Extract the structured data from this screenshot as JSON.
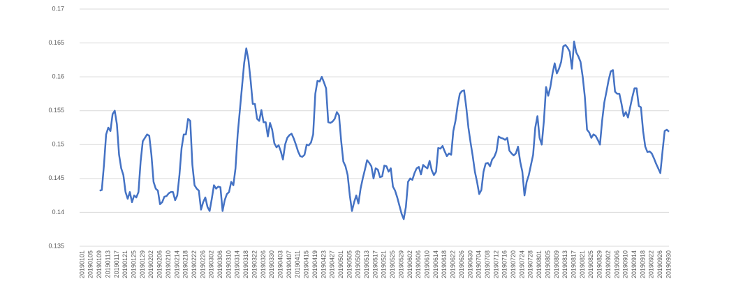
{
  "chart_data": {
    "type": "line",
    "ylim": [
      0.135,
      0.17
    ],
    "yticks": [
      0.135,
      0.14,
      0.145,
      0.15,
      0.155,
      0.16,
      0.165,
      0.17
    ],
    "grid": true,
    "categories": [
      "20190101",
      null,
      null,
      null,
      "20190105",
      null,
      null,
      null,
      "20190109",
      null,
      null,
      null,
      "20190113",
      null,
      null,
      null,
      "20190117",
      null,
      null,
      null,
      "20190121",
      null,
      null,
      null,
      "20190125",
      null,
      null,
      null,
      "20190129",
      null,
      null,
      null,
      "20190202",
      null,
      null,
      null,
      "20190206",
      null,
      null,
      null,
      "20190210",
      null,
      null,
      null,
      "20190214",
      null,
      null,
      null,
      "20190218",
      null,
      null,
      null,
      "20190222",
      null,
      null,
      null,
      "20190226",
      null,
      null,
      null,
      "20190302",
      null,
      null,
      null,
      "20190306",
      null,
      null,
      null,
      "20190310",
      null,
      null,
      null,
      "20190314",
      null,
      null,
      null,
      "20190318",
      null,
      null,
      null,
      "20190322",
      null,
      null,
      null,
      "20190326",
      null,
      null,
      null,
      "20190330",
      null,
      null,
      null,
      "20190403",
      null,
      null,
      null,
      "20190407",
      null,
      null,
      null,
      "20190411",
      null,
      null,
      null,
      "20190415",
      null,
      null,
      null,
      "20190419",
      null,
      null,
      null,
      "20190423",
      null,
      null,
      null,
      "20190427",
      null,
      null,
      null,
      "20190501",
      null,
      null,
      null,
      "20190505",
      null,
      null,
      null,
      "20190509",
      null,
      null,
      null,
      "20190513",
      null,
      null,
      null,
      "20190517",
      null,
      null,
      null,
      "20190521",
      null,
      null,
      null,
      "20190525",
      null,
      null,
      null,
      "20190529",
      null,
      null,
      null,
      "20190602",
      null,
      null,
      null,
      "20190606",
      null,
      null,
      null,
      "20190610",
      null,
      null,
      null,
      "20190614",
      null,
      null,
      null,
      "20190618",
      null,
      null,
      null,
      "20190622",
      null,
      null,
      null,
      "20190626",
      null,
      null,
      null,
      "20190630",
      null,
      null,
      null,
      "20190704",
      null,
      null,
      null,
      "20190708",
      null,
      null,
      null,
      "20190712",
      null,
      null,
      null,
      "20190716",
      null,
      null,
      null,
      "20190720",
      null,
      null,
      null,
      "20190724",
      null,
      null,
      null,
      "20190728",
      null,
      null,
      null,
      "20190801",
      null,
      null,
      null,
      "20190805",
      null,
      null,
      null,
      "20190809",
      null,
      null,
      null,
      "20190813",
      null,
      null,
      null,
      "20190817",
      null,
      null,
      null,
      "20190821",
      null,
      null,
      null,
      "20190825",
      null,
      null,
      null,
      "20190829",
      null,
      null,
      null,
      "20190902",
      null,
      null,
      null,
      "20190906",
      null,
      null,
      null,
      "20190910",
      null,
      null,
      null,
      "20190914",
      null,
      null,
      null,
      "20190918",
      null,
      null,
      null,
      "20190922",
      null,
      null,
      null,
      "20190926",
      null,
      null,
      null,
      "20190930"
    ],
    "series": [
      {
        "color": "#4472c4",
        "values": [
          null,
          null,
          null,
          null,
          null,
          null,
          null,
          null,
          0.1432,
          0.1433,
          0.147,
          0.1515,
          0.1525,
          0.152,
          0.1545,
          0.155,
          0.153,
          0.1485,
          0.1465,
          0.1455,
          0.143,
          0.142,
          0.143,
          0.1415,
          0.1425,
          0.1422,
          0.143,
          0.1475,
          0.1505,
          0.151,
          0.1515,
          0.1513,
          0.1485,
          0.1445,
          0.1435,
          0.1432,
          0.1412,
          0.1415,
          0.1423,
          0.1424,
          0.1428,
          0.143,
          0.143,
          0.1418,
          0.1425,
          0.1455,
          0.1495,
          0.1515,
          0.1515,
          0.1538,
          0.1535,
          0.147,
          0.144,
          0.1435,
          0.1432,
          0.1404,
          0.1415,
          0.1422,
          0.1408,
          0.1402,
          0.142,
          0.144,
          0.1435,
          0.1438,
          0.1437,
          0.1402,
          0.1418,
          0.1427,
          0.143,
          0.1445,
          0.144,
          0.1465,
          0.1515,
          0.155,
          0.1585,
          0.162,
          0.1642,
          0.1625,
          0.1595,
          0.156,
          0.156,
          0.1538,
          0.1535,
          0.1551,
          0.1533,
          0.1533,
          0.1512,
          0.1532,
          0.1522,
          0.1502,
          0.1496,
          0.1499,
          0.149,
          0.1478,
          0.15,
          0.151,
          0.1514,
          0.1516,
          0.1509,
          0.15,
          0.149,
          0.1483,
          0.1482,
          0.1485,
          0.15,
          0.1499,
          0.1503,
          0.1515,
          0.1575,
          0.1594,
          0.1593,
          0.16,
          0.1592,
          0.1583,
          0.1533,
          0.1532,
          0.1534,
          0.1538,
          0.1548,
          0.1543,
          0.1505,
          0.1475,
          0.1468,
          0.1455,
          0.1425,
          0.1402,
          0.1415,
          0.1425,
          0.1413,
          0.1435,
          0.145,
          0.1463,
          0.1477,
          0.1473,
          0.1468,
          0.145,
          0.1465,
          0.1463,
          0.1452,
          0.1453,
          0.1469,
          0.1468,
          0.146,
          0.1465,
          0.1438,
          0.1432,
          0.1422,
          0.141,
          0.1398,
          0.139,
          0.1408,
          0.1445,
          0.145,
          0.1448,
          0.1458,
          0.1465,
          0.1467,
          0.1456,
          0.147,
          0.1467,
          0.1465,
          0.1476,
          0.1462,
          0.1455,
          0.146,
          0.1495,
          0.1494,
          0.1498,
          0.149,
          0.1483,
          0.1487,
          0.1485,
          0.152,
          0.1535,
          0.1558,
          0.1575,
          0.1579,
          0.158,
          0.1555,
          0.1525,
          0.1503,
          0.1483,
          0.146,
          0.1445,
          0.1427,
          0.1433,
          0.146,
          0.1472,
          0.1473,
          0.1468,
          0.1478,
          0.1482,
          0.149,
          0.1512,
          0.151,
          0.1509,
          0.1507,
          0.151,
          0.1491,
          0.1487,
          0.1484,
          0.1487,
          0.1497,
          0.1475,
          0.146,
          0.1425,
          0.1445,
          0.1455,
          0.147,
          0.1485,
          0.1525,
          0.1542,
          0.151,
          0.15,
          0.1535,
          0.1585,
          0.1572,
          0.1585,
          0.1605,
          0.162,
          0.1605,
          0.1612,
          0.1622,
          0.1645,
          0.1647,
          0.1643,
          0.1637,
          0.1612,
          0.1652,
          0.1636,
          0.163,
          0.1622,
          0.16,
          0.157,
          0.1522,
          0.1518,
          0.151,
          0.1515,
          0.1513,
          0.1507,
          0.15,
          0.1535,
          0.1562,
          0.1578,
          0.1595,
          0.1608,
          0.161,
          0.1578,
          0.1575,
          0.1575,
          0.156,
          0.1542,
          0.1548,
          0.154,
          0.1555,
          0.157,
          0.1583,
          0.1583,
          0.1557,
          0.1555,
          0.152,
          0.1497,
          0.1489,
          0.149,
          0.1487,
          0.148,
          0.1472,
          0.1465,
          0.1458,
          0.149,
          0.152,
          0.1522,
          0.1519
        ]
      }
    ]
  }
}
